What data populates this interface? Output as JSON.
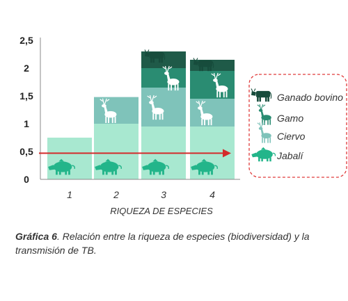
{
  "chart_data": {
    "type": "bar",
    "stacked": true,
    "xlabel": "RIQUEZA DE ESPECIES",
    "ylabel": "",
    "ylim": [
      0,
      2.5
    ],
    "yticks": [
      "0",
      "0,5",
      "1",
      "1,5",
      "2",
      "2,5"
    ],
    "ytick_values": [
      0,
      0.5,
      1,
      1.5,
      2,
      2.5
    ],
    "categories": [
      "1",
      "2",
      "3",
      "4"
    ],
    "series": [
      {
        "name": "Jabalí",
        "values": [
          0.75,
          1.0,
          0.95,
          0.95
        ]
      },
      {
        "name": "Ciervo",
        "values": [
          0,
          0.48,
          0.7,
          0.5
        ]
      },
      {
        "name": "Gamo",
        "values": [
          0,
          0,
          0.35,
          0.5
        ]
      },
      {
        "name": "Ganado bovino",
        "values": [
          0,
          0,
          0.3,
          0.2
        ]
      }
    ],
    "grid": false,
    "legend_placement": "right",
    "trend_arrow": "horizontal red arrow at y ≈ 0.47 across all categories"
  },
  "colors": {
    "Jabalí": "#a8e8d0",
    "Ciervo": "#7fc3ba",
    "Gamo": "#2a8c72",
    "Ganado bovino": "#1f5a48",
    "arrow": "#d42a2a",
    "legend_border": "#e03a3a",
    "icon_jabali": "#23b58a",
    "icon_dark": "#174c3c"
  },
  "legend": [
    "Ganado bovino",
    "Gamo",
    "Ciervo",
    "Jabalí"
  ],
  "caption": {
    "bold": "Gráfica 6",
    "text": ". Relación entre la riqueza de especies (biodiversidad) y la transmisión de TB."
  }
}
